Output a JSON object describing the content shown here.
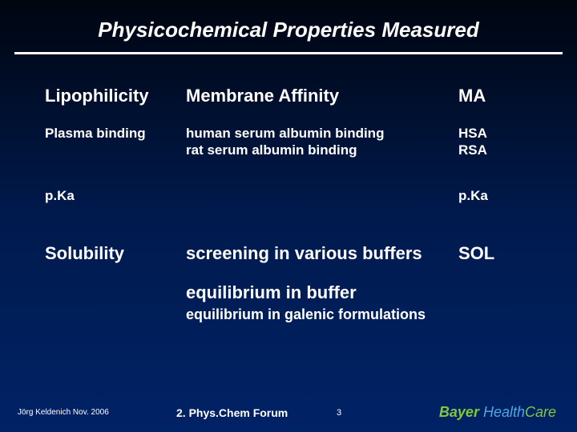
{
  "title": "Physicochemical Properties Measured",
  "rows": {
    "r1": {
      "c1": "Lipophilicity",
      "c2": "Membrane Affinity",
      "c3": "MA"
    },
    "r2": {
      "c1": "Plasma binding",
      "c2a": "human serum albumin binding",
      "c2b": "rat serum albumin binding",
      "c3a": "HSA",
      "c3b": "RSA"
    },
    "r3": {
      "c1": "p.Ka",
      "c3": "p.Ka"
    },
    "r4": {
      "c1": "Solubility",
      "c2": "screening in various buffers",
      "c3": "SOL"
    }
  },
  "sub": {
    "s1": "equilibrium in buffer",
    "s2": "equilibrium in galenic formulations"
  },
  "footer": {
    "author": "Jörg Keldenich Nov. 2006",
    "mid": "2. Phys.Chem Forum",
    "page": "3",
    "logo": {
      "a": "Bayer ",
      "b": "Health",
      "c": "Care"
    }
  },
  "colors": {
    "bg_top": "#000510",
    "bg_bottom": "#002266",
    "text": "#ffffff",
    "bayer_green": "#7fc93a",
    "health_blue": "#4fa8e0"
  }
}
